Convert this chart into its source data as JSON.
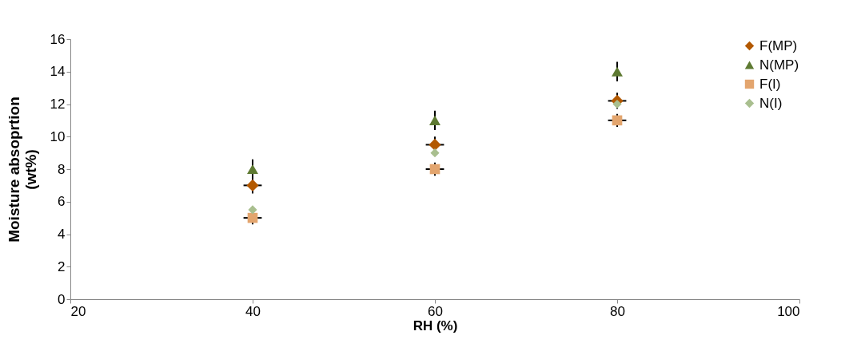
{
  "chart_data": {
    "type": "scatter",
    "xlabel": "RH (%)",
    "ylabel": "Moisture absoprtion (wt%)",
    "xlim": [
      20,
      100
    ],
    "xticks": [
      20,
      40,
      60,
      80,
      100
    ],
    "ylim": [
      0,
      16
    ],
    "yticks": [
      0,
      2,
      4,
      6,
      8,
      10,
      12,
      14,
      16
    ],
    "grid": false,
    "legend": "top right",
    "series": [
      {
        "name": "F(MP)",
        "color": "#b35900",
        "marker": "diamond",
        "x": [
          40,
          60,
          80
        ],
        "values": [
          7,
          9.5,
          12.2
        ],
        "errors": [
          0.5,
          0.5,
          0.5
        ],
        "xerrors": [
          1,
          1,
          1
        ]
      },
      {
        "name": "N(MP)",
        "color": "#5e7a32",
        "marker": "triangle",
        "x": [
          40,
          60,
          80
        ],
        "values": [
          8,
          11,
          14
        ],
        "errors": [
          0.6,
          0.6,
          0.6
        ]
      },
      {
        "name": "F(I)",
        "color": "#e3a56e",
        "marker": "square",
        "x": [
          40,
          60,
          80
        ],
        "values": [
          5,
          8,
          11
        ],
        "errors": [
          0.4,
          0.4,
          0.4
        ],
        "xerrors": [
          1,
          1,
          1
        ]
      },
      {
        "name": "N(I)",
        "color": "#a9bf8f",
        "marker": "diamond",
        "x": [
          40,
          60,
          80
        ],
        "values": [
          5.5,
          9,
          12
        ]
      }
    ]
  }
}
